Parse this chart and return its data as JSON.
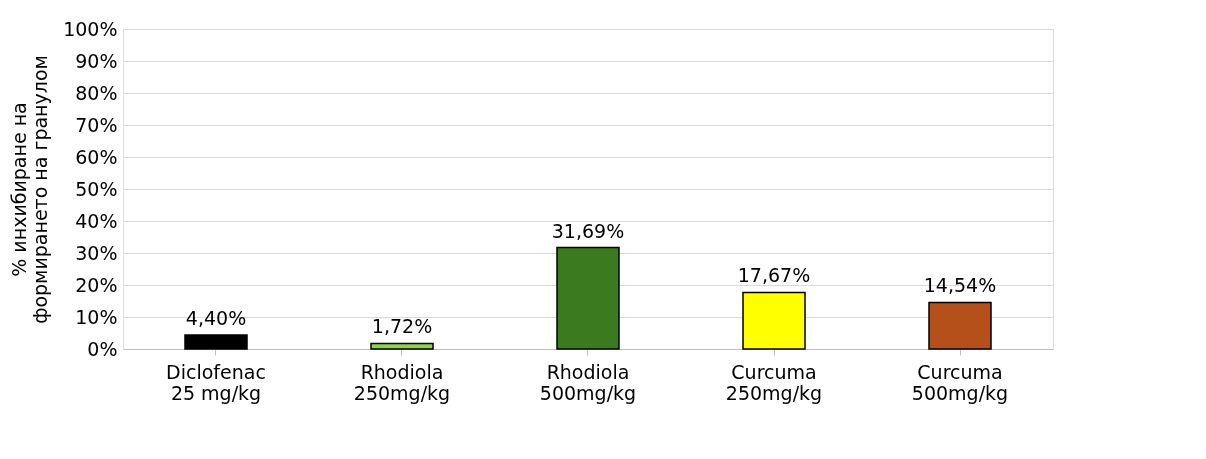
{
  "chart_data": {
    "type": "bar",
    "ylabel": "% инхибиране на формирането на гранулом",
    "categories": [
      "Diclofenac\n25 mg/kg",
      "Rhodiola\n250mg/kg",
      "Rhodiola\n500mg/kg",
      "Curcuma\n250mg/kg",
      "Curcuma\n500mg/kg"
    ],
    "values": [
      4.4,
      1.72,
      31.69,
      17.67,
      14.54
    ],
    "value_labels": [
      "4,40%",
      "1,72%",
      "31,69%",
      "17,67%",
      "14,54%"
    ],
    "colors": [
      "#000000",
      "#92d050",
      "#3b7a1e",
      "#ffff00",
      "#b5501a"
    ],
    "ylim": [
      0,
      100
    ],
    "yticks": [
      {
        "value": 0,
        "label": "0%"
      },
      {
        "value": 10,
        "label": "10%"
      },
      {
        "value": 20,
        "label": "20%"
      },
      {
        "value": 30,
        "label": "30%"
      },
      {
        "value": 40,
        "label": "40%"
      },
      {
        "value": 50,
        "label": "50%"
      },
      {
        "value": 60,
        "label": "60%"
      },
      {
        "value": 70,
        "label": "70%"
      },
      {
        "value": 80,
        "label": "80%"
      },
      {
        "value": 90,
        "label": "90%"
      },
      {
        "value": 100,
        "label": "100%"
      }
    ],
    "grid": "y"
  }
}
